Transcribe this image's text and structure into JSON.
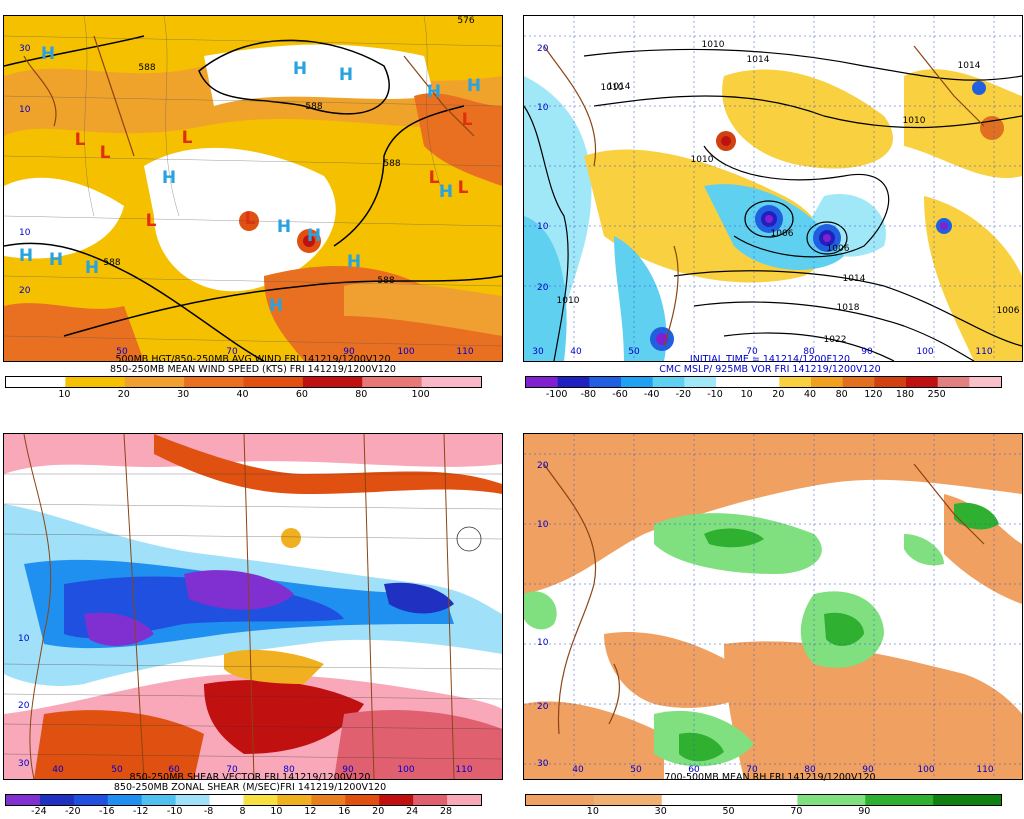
{
  "panels": [
    {
      "id": "p1",
      "caption_lines": [
        "500MB HGT/850-250MB AVG WIND FRI 141219/1200V120",
        "850-250MB MEAN WIND SPEED (KTS) FRI 141219/1200V120"
      ],
      "lat_labels": [
        "30",
        "10",
        "10",
        "20"
      ],
      "lon_labels": [
        "50",
        "70",
        "90",
        "100",
        "110"
      ],
      "isolines": [
        "576",
        "588",
        "588",
        "588",
        "588",
        "588"
      ],
      "centers": [
        "H",
        "H",
        "H",
        "H",
        "H",
        "L",
        "L",
        "L",
        "L",
        "L",
        "H",
        "L",
        "H",
        "H",
        "H",
        "H",
        "L",
        "L",
        "H",
        "H",
        "H",
        "H"
      ],
      "colorbar": {
        "colors": [
          "#ffffff",
          "#f5c000",
          "#f0a030",
          "#e87020",
          "#e05010",
          "#c01010",
          "#e87878",
          "#f8b8c8"
        ],
        "labels": [
          "10",
          "20",
          "30",
          "40",
          "60",
          "80",
          "100"
        ]
      }
    },
    {
      "id": "p2",
      "caption_lines": [
        "INITIAL TIME = 141214/1200F120",
        "CMC MSLP/ 925MB VOR FRI 141219/1200V120"
      ],
      "lat_labels": [
        "20",
        "10",
        "10",
        "20"
      ],
      "lon_labels": [
        "30",
        "40",
        "50",
        "70",
        "80",
        "90",
        "100",
        "110"
      ],
      "isolines": [
        "1010",
        "1014",
        "1010",
        "1014",
        "1010",
        "1010",
        "1006",
        "1006",
        "1014",
        "1018",
        "1022",
        "1010",
        "1006",
        "1014"
      ],
      "colorbar": {
        "colors": [
          "#8020d0",
          "#2020c0",
          "#2060e0",
          "#20a0f0",
          "#60d0f0",
          "#a0e8f8",
          "#ffffff",
          "#ffffff",
          "#f8d040",
          "#f0a020",
          "#e07020",
          "#d04010",
          "#c01010",
          "#e08080",
          "#f8c0c8"
        ],
        "labels": [
          "-100",
          "-80",
          "-60",
          "-40",
          "-20",
          "-10",
          "10",
          "20",
          "40",
          "80",
          "120",
          "180",
          "250"
        ]
      }
    },
    {
      "id": "p3",
      "caption_lines": [
        "850-250MB SHEAR VECTOR FRI 141219/1200V120",
        "850-250MB ZONAL SHEAR (M/SEC)FRI 141219/1200V120"
      ],
      "lat_labels": [
        "10",
        "20",
        "30"
      ],
      "lon_labels": [
        "40",
        "50",
        "60",
        "70",
        "80",
        "90",
        "100",
        "110"
      ],
      "colorbar": {
        "colors": [
          "#8030d0",
          "#2030c0",
          "#2050e0",
          "#2090f0",
          "#50c0f0",
          "#a0e0f8",
          "#ffffff",
          "#f8e040",
          "#f0b020",
          "#e88020",
          "#e05010",
          "#c01010",
          "#e06070",
          "#f8a8b8"
        ],
        "labels": [
          "-24",
          "-20",
          "-16",
          "-12",
          "-10",
          "-8",
          "8",
          "10",
          "12",
          "16",
          "20",
          "24",
          "28"
        ]
      }
    },
    {
      "id": "p4",
      "caption_lines": [
        "700-500MB MEAN RH FRI 141219/1200V120"
      ],
      "lat_labels": [
        "20",
        "10",
        "10",
        "20",
        "30"
      ],
      "lon_labels": [
        "40",
        "50",
        "60",
        "70",
        "80",
        "90",
        "100",
        "110"
      ],
      "colorbar": {
        "colors": [
          "#f0a060",
          "#f0b070",
          "#ffffff",
          "#ffffff",
          "#80e080",
          "#30b030",
          "#108010"
        ],
        "labels": [
          "10",
          "30",
          "50",
          "70",
          "90"
        ]
      }
    }
  ]
}
